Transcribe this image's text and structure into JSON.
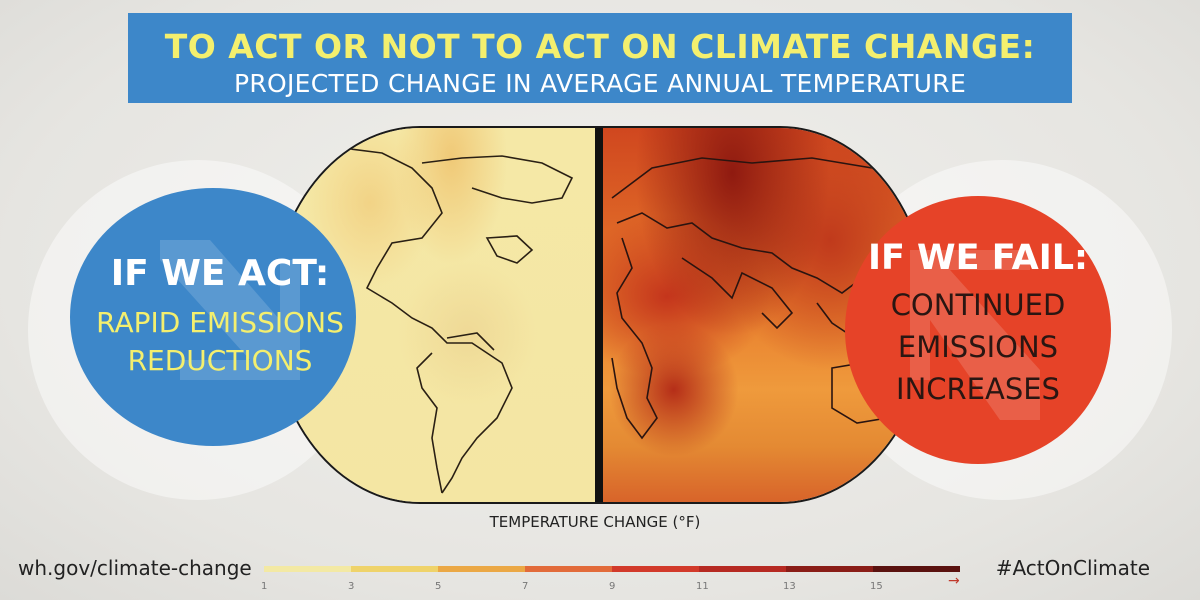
{
  "header": {
    "title": "TO ACT OR NOT TO ACT ON CLIMATE CHANGE:",
    "subtitle": "PROJECTED CHANGE IN AVERAGE ANNUAL TEMPERATURE"
  },
  "act": {
    "heading": "IF WE ACT:",
    "line1": "RAPID EMISSIONS",
    "line2": "REDUCTIONS",
    "color": "#3d87c9"
  },
  "fail": {
    "heading": "IF WE FAIL:",
    "line1": "CONTINUED",
    "line2": "EMISSIONS",
    "line3": "INCREASES",
    "color": "#e64328"
  },
  "legend": {
    "title": "TEMPERATURE CHANGE (°F)",
    "ticks": [
      "1",
      "3",
      "5",
      "7",
      "9",
      "11",
      "13",
      "15"
    ],
    "colors": [
      "#f3e9a4",
      "#efd36a",
      "#eba845",
      "#e26b3a",
      "#d23a2a",
      "#b62a22",
      "#8a1d17",
      "#5a120f"
    ]
  },
  "footer": {
    "url": "wh.gov/climate-change",
    "hashtag": "#ActOnClimate"
  }
}
